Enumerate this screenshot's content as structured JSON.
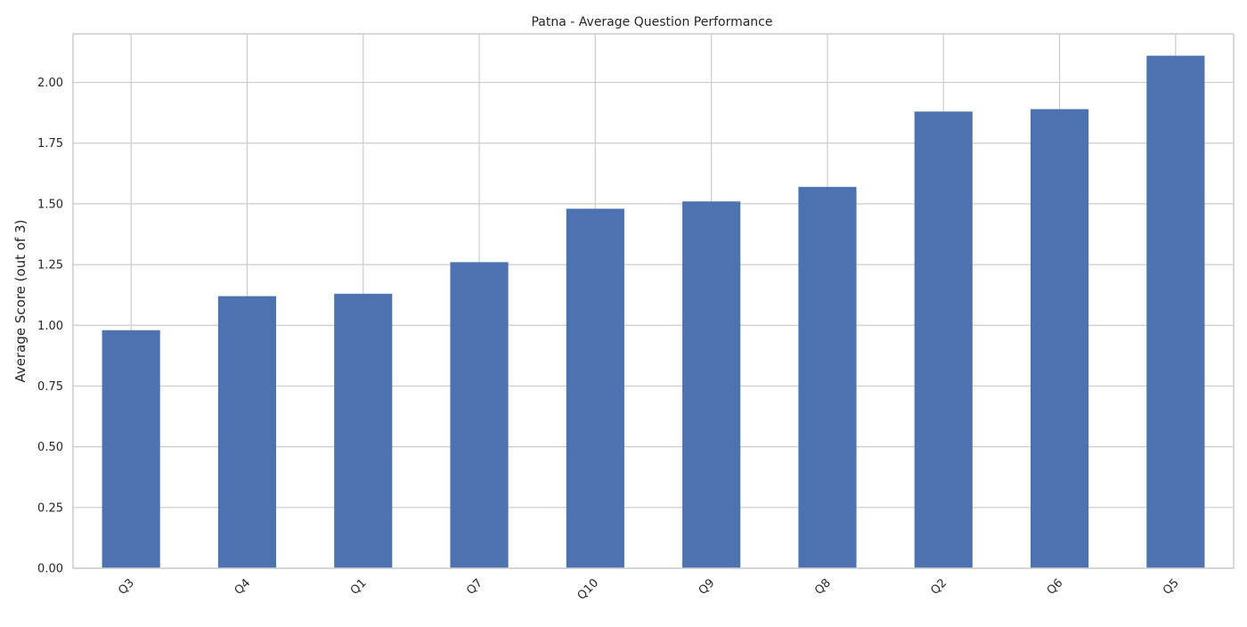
{
  "chart_data": {
    "type": "bar",
    "title": "Patna - Average Question Performance",
    "xlabel": "",
    "ylabel": "Average Score (out of 3)",
    "categories": [
      "Q3",
      "Q4",
      "Q1",
      "Q7",
      "Q10",
      "Q9",
      "Q8",
      "Q2",
      "Q6",
      "Q5"
    ],
    "values": [
      0.98,
      1.12,
      1.13,
      1.26,
      1.48,
      1.51,
      1.57,
      1.88,
      1.89,
      2.11
    ],
    "ylim": [
      0,
      2.2
    ],
    "yticks": [
      0.0,
      0.25,
      0.5,
      0.75,
      1.0,
      1.25,
      1.5,
      1.75,
      2.0
    ],
    "ytick_labels": [
      "0.00",
      "0.25",
      "0.50",
      "0.75",
      "1.00",
      "1.25",
      "1.50",
      "1.75",
      "2.00"
    ],
    "grid": true,
    "bar_color": "#4c72b0",
    "grid_color": "#cccccc",
    "axis_color": "#cccccc",
    "xtick_rotation": 45
  }
}
